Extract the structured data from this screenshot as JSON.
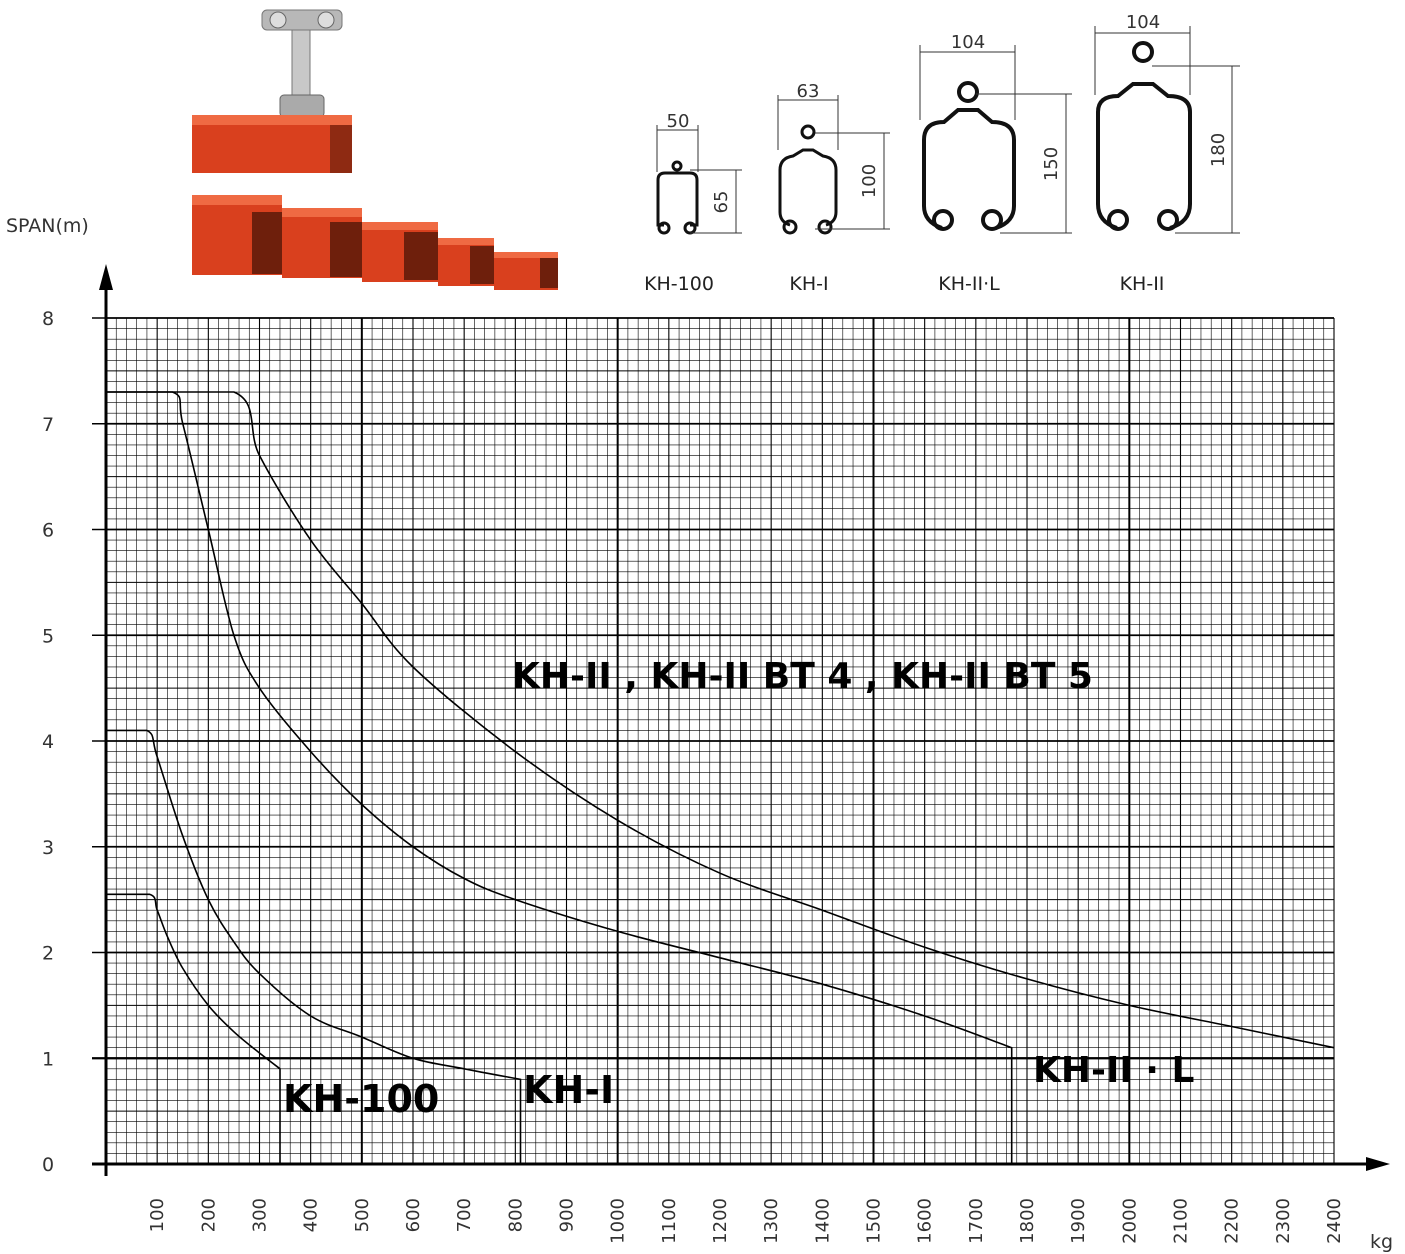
{
  "chart_data": {
    "type": "line",
    "ylabel": "SPAN(m)",
    "xlabel": "kg",
    "xlim": [
      0,
      2400
    ],
    "ylim": [
      0,
      8
    ],
    "x_ticks": [
      100,
      200,
      300,
      400,
      500,
      600,
      700,
      800,
      900,
      1000,
      1100,
      1200,
      1300,
      1400,
      1500,
      1600,
      1700,
      1800,
      1900,
      2000,
      2100,
      2200,
      2300,
      2400
    ],
    "y_ticks": [
      0,
      1,
      2,
      3,
      4,
      5,
      6,
      7,
      8
    ],
    "grid": true,
    "series": [
      {
        "name": "KH-100",
        "color": "#000000",
        "x": [
          0,
          85,
          100,
          120,
          150,
          200,
          250,
          300,
          340
        ],
        "y": [
          2.55,
          2.55,
          2.4,
          2.15,
          1.85,
          1.5,
          1.25,
          1.05,
          0.9
        ],
        "drop_to_axis_at": 340
      },
      {
        "name": "KH-I",
        "color": "#000000",
        "x": [
          0,
          80,
          100,
          150,
          200,
          250,
          300,
          400,
          500,
          600,
          700,
          810
        ],
        "y": [
          4.1,
          4.1,
          3.85,
          3.1,
          2.5,
          2.1,
          1.8,
          1.4,
          1.2,
          1.0,
          0.9,
          0.8
        ],
        "drop_to_axis_at": 810
      },
      {
        "name": "KH-II·L",
        "color": "#000000",
        "x": [
          0,
          130,
          150,
          200,
          250,
          300,
          400,
          500,
          600,
          700,
          800,
          1000,
          1200,
          1400,
          1600,
          1770
        ],
        "y": [
          7.3,
          7.3,
          7.0,
          6.0,
          5.0,
          4.5,
          3.9,
          3.4,
          3.0,
          2.7,
          2.5,
          2.2,
          1.95,
          1.7,
          1.4,
          1.1
        ],
        "drop_to_axis_at": 1770
      },
      {
        "name": "KH-II, KH-II BT 4, KH-II BT 5",
        "color": "#000000",
        "x": [
          0,
          250,
          300,
          400,
          500,
          600,
          800,
          1000,
          1200,
          1400,
          1600,
          1800,
          2000,
          2200,
          2400
        ],
        "y": [
          7.3,
          7.3,
          6.7,
          5.9,
          5.3,
          4.7,
          3.9,
          3.25,
          2.75,
          2.4,
          2.05,
          1.75,
          1.5,
          1.3,
          1.1
        ]
      }
    ],
    "labels": {
      "kh100": "KH-100",
      "khi": "KH-I",
      "khii_l": "KH-II · L",
      "khii": "KH-II , KH-II BT 4 , KH-II BT 5"
    }
  },
  "profiles": [
    {
      "name": "KH-100",
      "width": "50",
      "height": "65"
    },
    {
      "name": "KH-I",
      "width": "63",
      "height": "100"
    },
    {
      "name": "KH-II·L",
      "width": "104",
      "height": "150"
    },
    {
      "name": "KH-II",
      "width": "104",
      "height": "180"
    }
  ],
  "colors": {
    "rail": "#d9401e",
    "grid": "#000000"
  }
}
